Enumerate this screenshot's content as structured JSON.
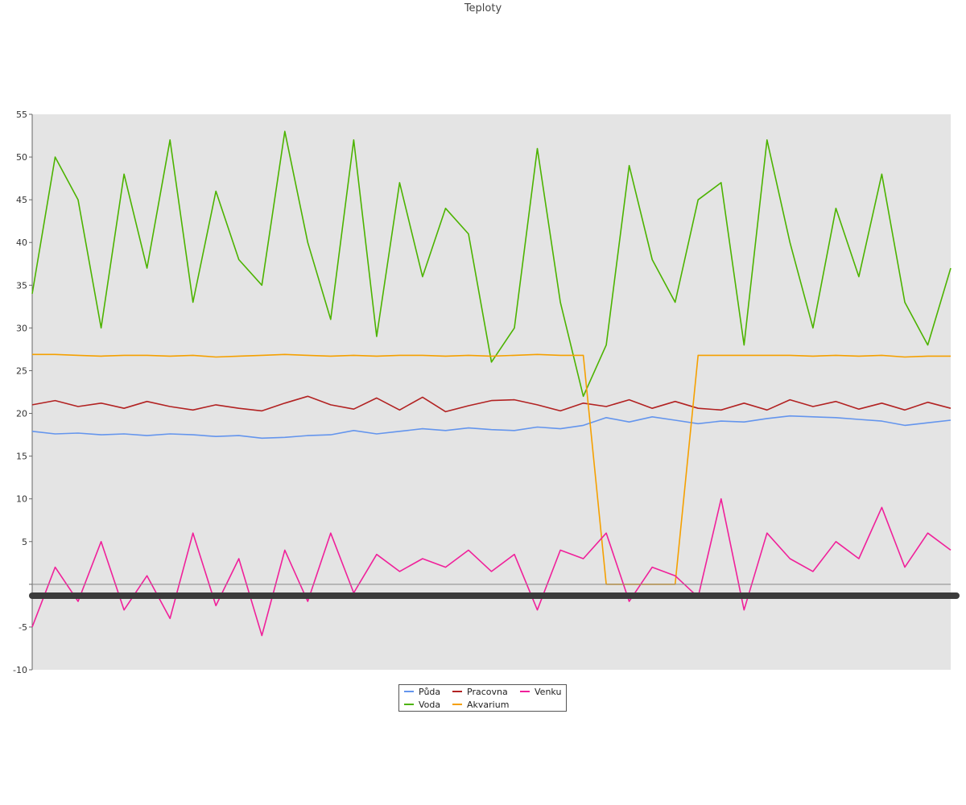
{
  "chart_data": {
    "type": "line",
    "title": "Teploty",
    "xlabel": "",
    "ylabel": "",
    "ylim": [
      -10,
      55
    ],
    "yticks": [
      -10,
      -5,
      5,
      10,
      15,
      20,
      25,
      30,
      35,
      40,
      45,
      50,
      55
    ],
    "grid": false,
    "plot_background": "#e4e4e4",
    "legend_position": "bottom-center",
    "n_points": 41,
    "series": [
      {
        "name": "Půda",
        "color": "#6495ed",
        "values": [
          17.9,
          17.6,
          17.7,
          17.5,
          17.6,
          17.4,
          17.6,
          17.5,
          17.3,
          17.4,
          17.1,
          17.2,
          17.4,
          17.5,
          18.0,
          17.6,
          17.9,
          18.2,
          18.0,
          18.3,
          18.1,
          18.0,
          18.4,
          18.2,
          18.6,
          19.5,
          19.0,
          19.6,
          19.2,
          18.8,
          19.1,
          19.0,
          19.4,
          19.7,
          19.6,
          19.5,
          19.3,
          19.1,
          18.6,
          18.9,
          19.2
        ]
      },
      {
        "name": "Voda",
        "color": "#4cb300",
        "values": [
          34,
          50,
          45,
          30,
          48,
          37,
          52,
          33,
          46,
          38,
          35,
          53,
          40,
          31,
          52,
          29,
          47,
          36,
          44,
          41,
          26,
          30,
          51,
          33,
          22,
          28,
          49,
          38,
          33,
          45,
          47,
          28,
          52,
          40,
          30,
          44,
          36,
          48,
          33,
          28,
          37
        ]
      },
      {
        "name": "Pracovna",
        "color": "#b22222",
        "values": [
          21.0,
          21.5,
          20.8,
          21.2,
          20.6,
          21.4,
          20.8,
          20.4,
          21.0,
          20.6,
          20.3,
          21.2,
          22.0,
          21.0,
          20.5,
          21.8,
          20.4,
          21.9,
          20.2,
          20.9,
          21.5,
          21.6,
          21.0,
          20.3,
          21.2,
          20.8,
          21.6,
          20.6,
          21.4,
          20.6,
          20.4,
          21.2,
          20.4,
          21.6,
          20.8,
          21.4,
          20.5,
          21.2,
          20.4,
          21.3,
          20.6
        ]
      },
      {
        "name": "Akvarium",
        "color": "#f5a000",
        "values": [
          26.9,
          26.9,
          26.8,
          26.7,
          26.8,
          26.8,
          26.7,
          26.8,
          26.6,
          26.7,
          26.8,
          26.9,
          26.8,
          26.7,
          26.8,
          26.7,
          26.8,
          26.8,
          26.7,
          26.8,
          26.7,
          26.8,
          26.9,
          26.8,
          26.8,
          0.0,
          0.0,
          0.0,
          0.0,
          26.8,
          26.8,
          26.8,
          26.8,
          26.8,
          26.7,
          26.8,
          26.7,
          26.8,
          26.6,
          26.7,
          26.7
        ]
      },
      {
        "name": "Venku",
        "color": "#f0209a",
        "values": [
          -5.0,
          2.0,
          -2.0,
          5.0,
          -3.0,
          1.0,
          -4.0,
          6.0,
          -2.5,
          3.0,
          -6.0,
          4.0,
          -2.0,
          6.0,
          -1.0,
          3.5,
          1.5,
          3.0,
          2.0,
          4.0,
          1.5,
          3.5,
          -3.0,
          4.0,
          3.0,
          6.0,
          -2.0,
          2.0,
          1.0,
          -1.5,
          10.0,
          -3.0,
          6.0,
          3.0,
          1.5,
          5.0,
          3.0,
          9.0,
          2.0,
          6.0,
          4.0
        ]
      }
    ]
  }
}
